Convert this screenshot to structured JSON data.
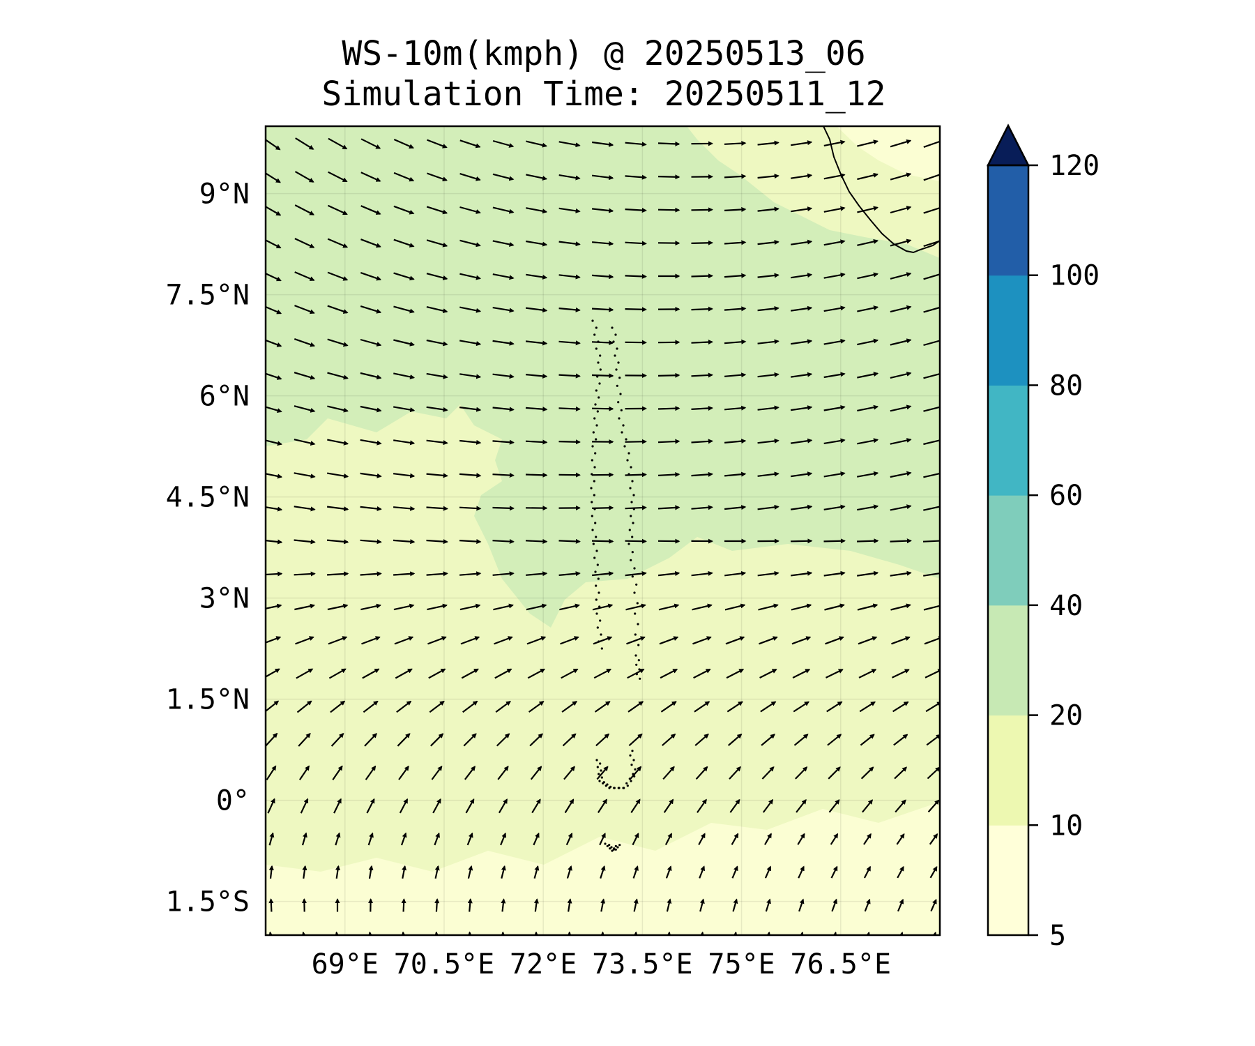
{
  "title": {
    "line1": "WS-10m(kmph) @ 20250513_06",
    "line2": "Simulation Time: 20250511_12"
  },
  "map": {
    "lon_range": [
      67.8,
      78.0
    ],
    "lat_range": [
      -2.0,
      10.0
    ],
    "lon_ticks": [
      69,
      70.5,
      72,
      73.5,
      75,
      76.5
    ],
    "lon_tick_labels": [
      "69°E",
      "70.5°E",
      "72°E",
      "73.5°E",
      "75°E",
      "76.5°E"
    ],
    "lat_ticks": [
      9,
      7.5,
      6,
      4.5,
      3,
      1.5,
      0,
      -1.5
    ],
    "lat_tick_labels": [
      "9°N",
      "7.5°N",
      "6°N",
      "4.5°N",
      "3°N",
      "1.5°N",
      "0°",
      "1.5°S"
    ],
    "gridlines": true
  },
  "colorbar": {
    "levels": [
      5,
      10,
      20,
      40,
      60,
      80,
      100,
      120
    ],
    "tick_labels": [
      "5",
      "10",
      "20",
      "40",
      "60",
      "80",
      "100",
      "120"
    ],
    "colors": [
      "#ffffd9",
      "#edf8b1",
      "#c7e9b4",
      "#7fcdbb",
      "#41b6c4",
      "#1d91c0",
      "#225ea8",
      "#0c2c84"
    ],
    "extend_color": "#081d58",
    "extend": "max"
  },
  "field_colors": {
    "very_calm": "#fbfed3",
    "calm": "#eef8c1",
    "moderate": "#d3eeb9",
    "coast": "#8fd4c2"
  }
}
